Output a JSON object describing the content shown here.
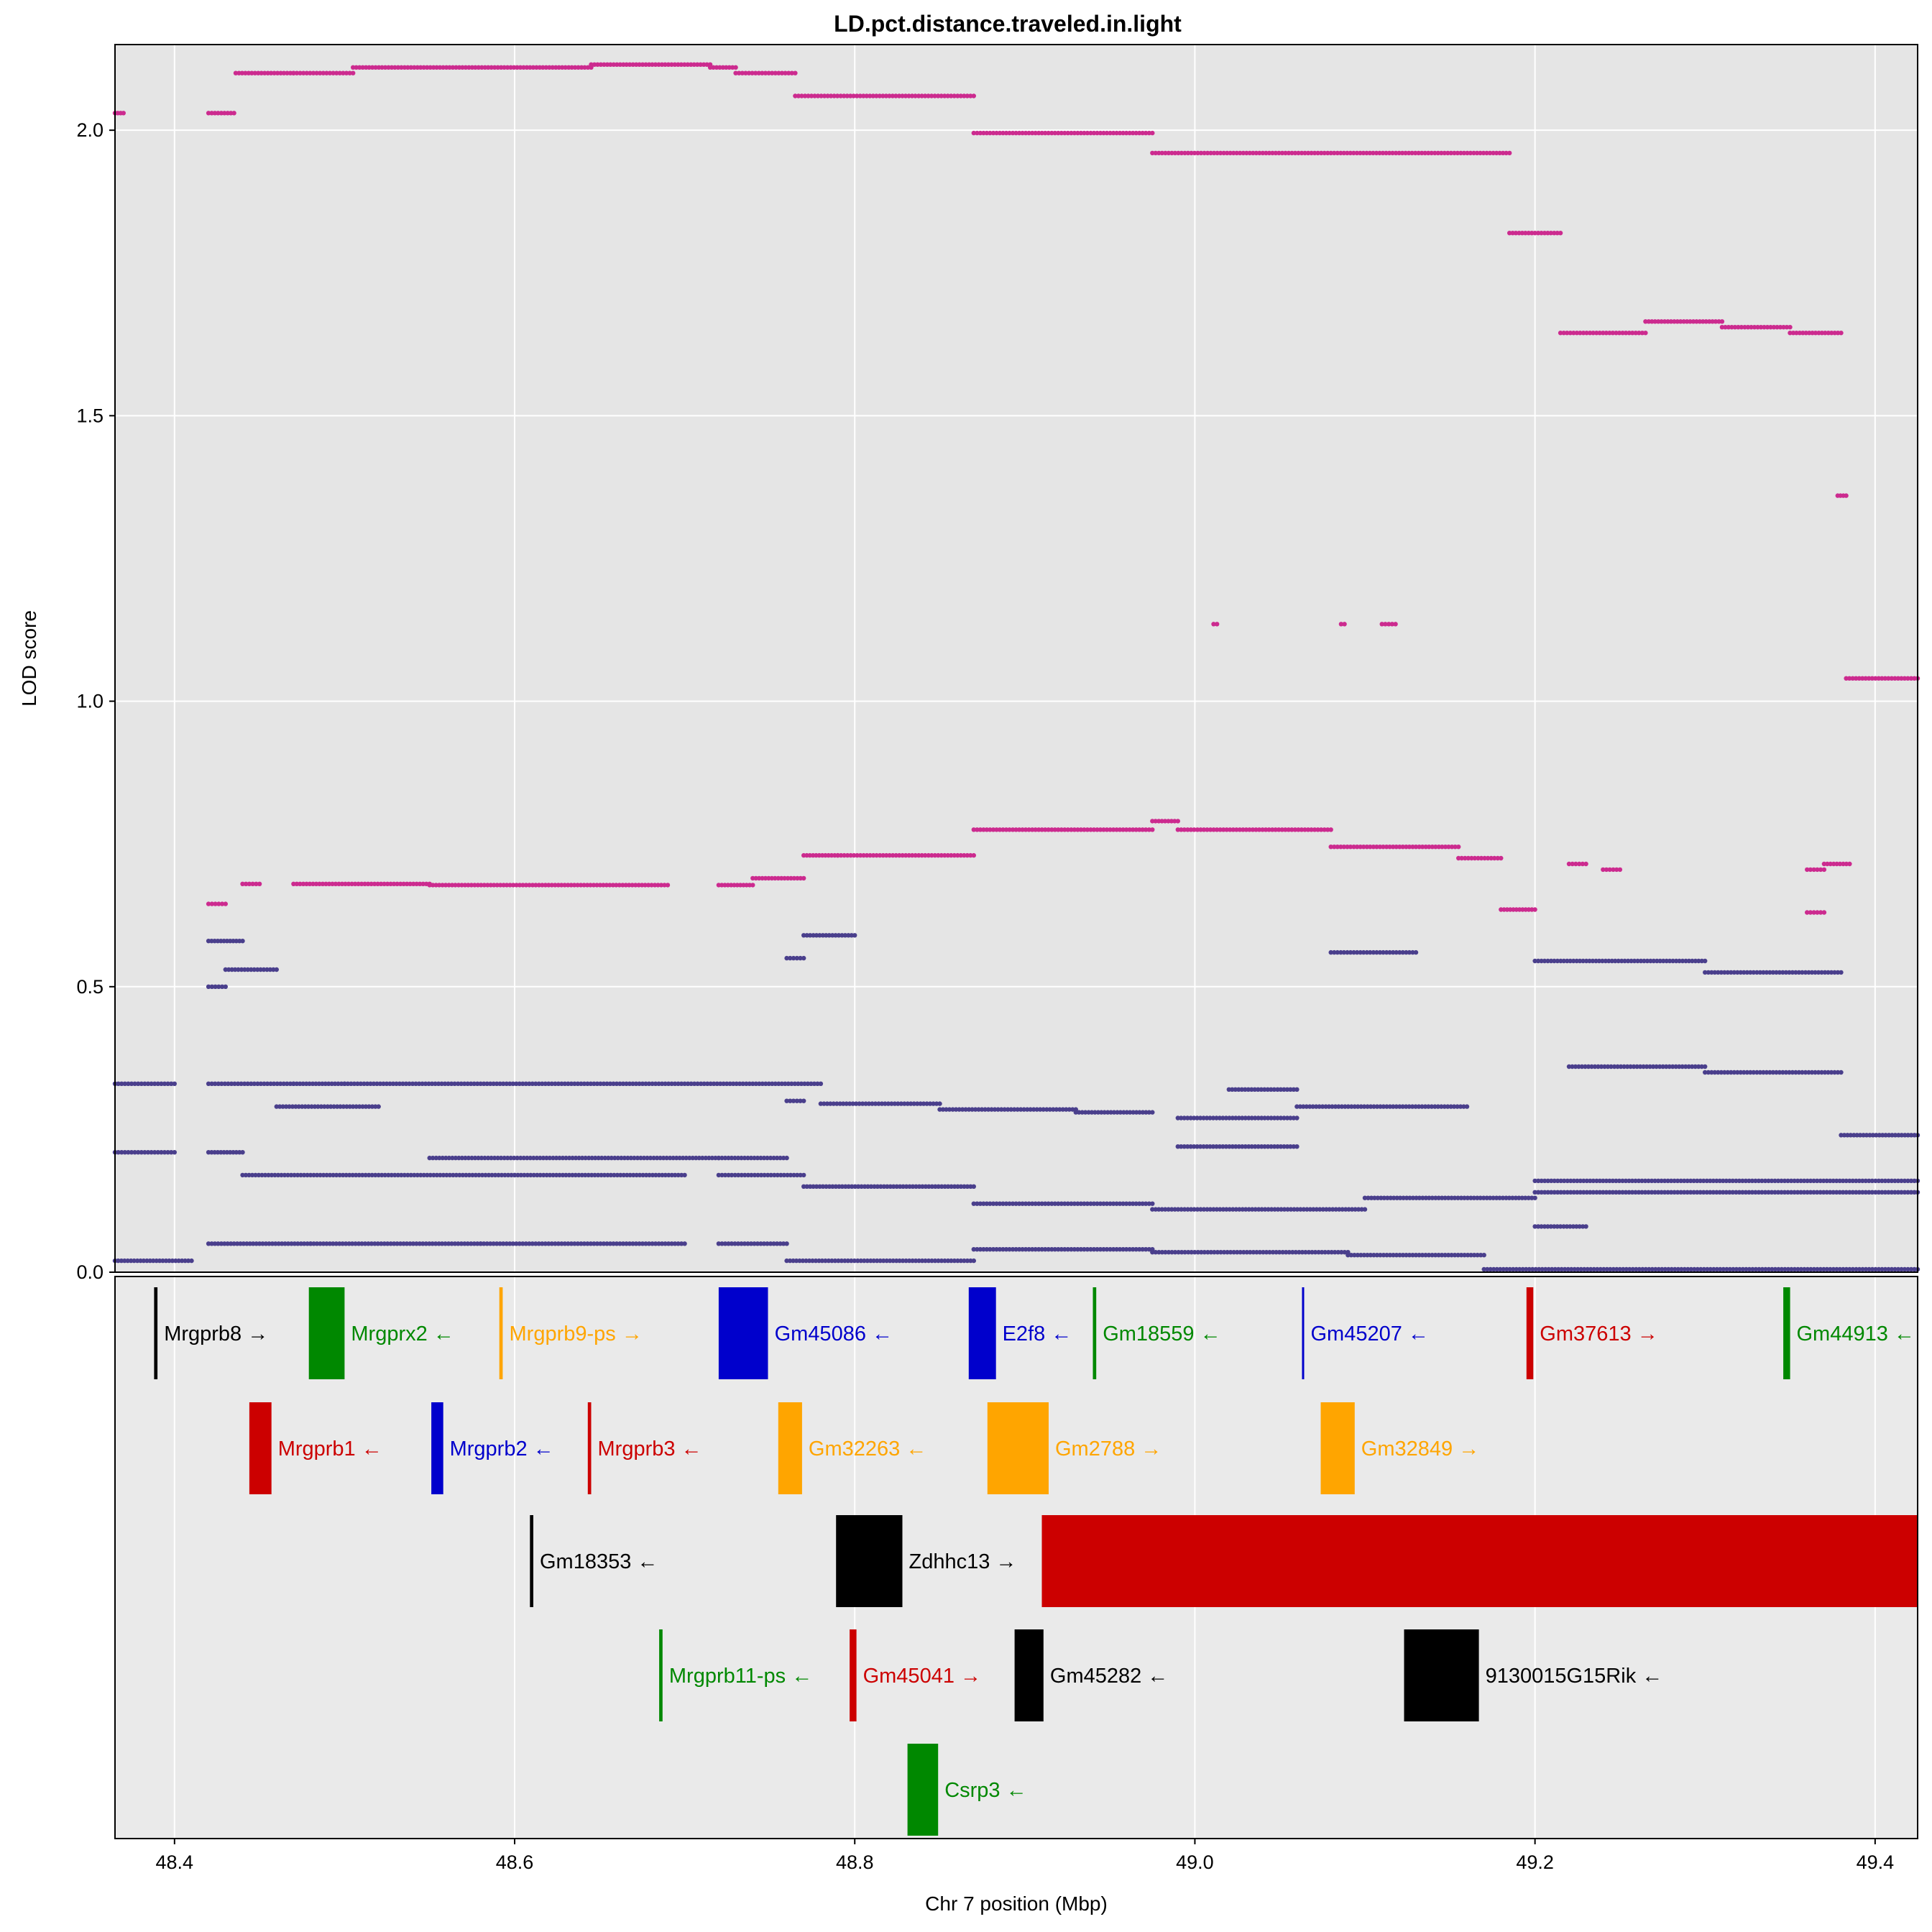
{
  "chart_data": {
    "type": "scatter",
    "title": "LD.pct.distance.traveled.in.light",
    "xlabel": "Chr 7 position (Mbp)",
    "ylabel": "LOD score",
    "xlim": [
      48.365,
      49.425
    ],
    "ylim": [
      0,
      2.15
    ],
    "x_ticks": [
      "48.4",
      "48.6",
      "48.8",
      "49.0",
      "49.2",
      "49.4"
    ],
    "x_tick_values": [
      48.4,
      48.6,
      48.8,
      49.0,
      49.2,
      49.4
    ],
    "y_ticks": [
      "0.0",
      "0.5",
      "1.0",
      "1.5",
      "2.0"
    ],
    "y_tick_values": [
      0,
      0.5,
      1.0,
      1.5,
      2.0
    ],
    "grid": true,
    "colors": {
      "highlight": "#cc2b8f",
      "background_snps": "#4a3f8c",
      "panel_bg": "#e5e5e5"
    },
    "series": [
      {
        "color": "#cc2b8f",
        "segments": [
          [
            48.365,
            48.37,
            2.03
          ],
          [
            48.42,
            48.435,
            2.03
          ],
          [
            48.436,
            48.47,
            2.1
          ],
          [
            48.47,
            48.505,
            2.1
          ],
          [
            48.505,
            48.645,
            2.11
          ],
          [
            48.645,
            48.715,
            2.115
          ],
          [
            48.715,
            48.73,
            2.11
          ],
          [
            48.73,
            48.765,
            2.1
          ],
          [
            48.765,
            48.87,
            2.06
          ],
          [
            48.87,
            48.975,
            1.995
          ],
          [
            48.975,
            49.185,
            1.96
          ],
          [
            49.185,
            49.215,
            1.82
          ],
          [
            49.215,
            49.265,
            1.645
          ],
          [
            49.265,
            49.31,
            1.665
          ],
          [
            49.31,
            49.35,
            1.655
          ],
          [
            49.35,
            49.38,
            1.645
          ],
          [
            49.378,
            49.383,
            1.36
          ],
          [
            49.383,
            49.425,
            1.04
          ],
          [
            49.011,
            49.013,
            1.135
          ],
          [
            49.086,
            49.088,
            1.135
          ],
          [
            49.11,
            49.118,
            1.135
          ],
          [
            48.42,
            48.43,
            0.645
          ],
          [
            48.44,
            48.45,
            0.68
          ],
          [
            48.47,
            48.55,
            0.68
          ],
          [
            48.55,
            48.69,
            0.678
          ],
          [
            48.72,
            48.74,
            0.678
          ],
          [
            48.74,
            48.77,
            0.69
          ],
          [
            48.77,
            48.79,
            0.73
          ],
          [
            48.79,
            48.87,
            0.73
          ],
          [
            48.87,
            48.975,
            0.775
          ],
          [
            48.975,
            48.99,
            0.79
          ],
          [
            48.99,
            49.08,
            0.775
          ],
          [
            49.08,
            49.155,
            0.745
          ],
          [
            49.155,
            49.18,
            0.725
          ],
          [
            49.18,
            49.2,
            0.635
          ],
          [
            49.22,
            49.23,
            0.715
          ],
          [
            49.24,
            49.25,
            0.705
          ],
          [
            49.36,
            49.37,
            0.63
          ],
          [
            49.36,
            49.37,
            0.705
          ],
          [
            49.37,
            49.385,
            0.715
          ]
        ]
      },
      {
        "color": "#4a3f8c",
        "segments": [
          [
            48.365,
            48.4,
            0.33
          ],
          [
            48.365,
            48.4,
            0.21
          ],
          [
            48.365,
            48.41,
            0.02
          ],
          [
            48.42,
            48.44,
            0.58
          ],
          [
            48.42,
            48.43,
            0.5
          ],
          [
            48.43,
            48.46,
            0.53
          ],
          [
            48.42,
            48.47,
            0.33
          ],
          [
            48.47,
            48.5,
            0.33
          ],
          [
            48.5,
            48.78,
            0.33
          ],
          [
            48.42,
            48.44,
            0.21
          ],
          [
            48.44,
            48.6,
            0.17
          ],
          [
            48.46,
            48.52,
            0.29
          ],
          [
            48.55,
            48.72,
            0.2
          ],
          [
            48.6,
            48.7,
            0.17
          ],
          [
            48.72,
            48.76,
            0.2
          ],
          [
            48.72,
            48.77,
            0.17
          ],
          [
            48.77,
            48.87,
            0.15
          ],
          [
            48.87,
            48.975,
            0.12
          ],
          [
            48.975,
            49.1,
            0.11
          ],
          [
            49.1,
            49.2,
            0.13
          ],
          [
            49.2,
            49.425,
            0.16
          ],
          [
            48.42,
            48.48,
            0.05
          ],
          [
            48.48,
            48.58,
            0.05
          ],
          [
            48.58,
            48.7,
            0.05
          ],
          [
            48.72,
            48.76,
            0.05
          ],
          [
            48.76,
            48.87,
            0.02
          ],
          [
            48.87,
            48.975,
            0.04
          ],
          [
            48.975,
            49.09,
            0.035
          ],
          [
            49.09,
            49.17,
            0.03
          ],
          [
            49.17,
            49.425,
            0.005
          ],
          [
            48.76,
            48.77,
            0.3
          ],
          [
            48.78,
            48.85,
            0.295
          ],
          [
            48.85,
            48.93,
            0.285
          ],
          [
            48.93,
            48.975,
            0.28
          ],
          [
            48.99,
            49.06,
            0.27
          ],
          [
            48.99,
            49.06,
            0.22
          ],
          [
            49.02,
            49.06,
            0.32
          ],
          [
            49.06,
            49.16,
            0.29
          ],
          [
            49.08,
            49.13,
            0.56
          ],
          [
            49.2,
            49.3,
            0.545
          ],
          [
            49.3,
            49.38,
            0.525
          ],
          [
            49.22,
            49.3,
            0.36
          ],
          [
            49.3,
            49.38,
            0.35
          ],
          [
            49.2,
            49.425,
            0.14
          ],
          [
            49.38,
            49.425,
            0.24
          ],
          [
            49.2,
            49.23,
            0.08
          ],
          [
            48.76,
            48.77,
            0.55
          ],
          [
            48.77,
            48.8,
            0.59
          ]
        ]
      }
    ],
    "genes": [
      {
        "name": "Mrgprb8",
        "start": 48.388,
        "end": 48.39,
        "strand": "→",
        "row": 1,
        "color": "#000000",
        "label": "Mrgprb8 →"
      },
      {
        "name": "Mrgprx2",
        "start": 48.479,
        "end": 48.5,
        "strand": "←",
        "row": 1,
        "color": "#008800",
        "label": "Mrgprx2 ←"
      },
      {
        "name": "Mrgprb9-ps",
        "start": 48.591,
        "end": 48.593,
        "strand": "→",
        "row": 1,
        "color": "#ffa500",
        "label": "Mrgprb9-ps →"
      },
      {
        "name": "Gm45086",
        "start": 48.72,
        "end": 48.749,
        "strand": "←",
        "row": 1,
        "color": "#0000cc",
        "label": "Gm45086 ←"
      },
      {
        "name": "E2f8",
        "start": 48.867,
        "end": 48.883,
        "strand": "←",
        "row": 1,
        "color": "#0000cc",
        "label": "E2f8 ←"
      },
      {
        "name": "Gm18559",
        "start": 48.94,
        "end": 48.942,
        "strand": "←",
        "row": 1,
        "color": "#008800",
        "label": "Gm18559 ←"
      },
      {
        "name": "Gm45207",
        "start": 49.063,
        "end": 49.064,
        "strand": "←",
        "row": 1,
        "color": "#0000cc",
        "label": "Gm45207 ←"
      },
      {
        "name": "Gm37613",
        "start": 49.195,
        "end": 49.199,
        "strand": "→",
        "row": 1,
        "color": "#cc0000",
        "label": "Gm37613 →"
      },
      {
        "name": "Gm44913",
        "start": 49.346,
        "end": 49.35,
        "strand": "←",
        "row": 1,
        "color": "#008800",
        "label": "Gm44913 ←"
      },
      {
        "name": "Mrgprb1",
        "start": 48.444,
        "end": 48.457,
        "strand": "←",
        "row": 2,
        "color": "#cc0000",
        "label": "Mrgprb1 ←"
      },
      {
        "name": "Mrgprb2",
        "start": 48.551,
        "end": 48.558,
        "strand": "←",
        "row": 2,
        "color": "#0000cc",
        "label": "Mrgprb2 ←"
      },
      {
        "name": "Mrgprb3",
        "start": 48.643,
        "end": 48.645,
        "strand": "←",
        "row": 2,
        "color": "#cc0000",
        "label": "Mrgprb3 ←"
      },
      {
        "name": "Gm32263",
        "start": 48.755,
        "end": 48.769,
        "strand": "←",
        "row": 2,
        "color": "#ffa500",
        "label": "Gm32263 ←"
      },
      {
        "name": "Gm2788",
        "start": 48.878,
        "end": 48.914,
        "strand": "→",
        "row": 2,
        "color": "#ffa500",
        "label": "Gm2788 →"
      },
      {
        "name": "Gm32849",
        "start": 49.074,
        "end": 49.094,
        "strand": "→",
        "row": 2,
        "color": "#ffa500",
        "label": "Gm32849 →"
      },
      {
        "name": "Gm18353",
        "start": 48.609,
        "end": 48.611,
        "strand": "←",
        "row": 3,
        "color": "#000000",
        "label": "Gm18353 ←"
      },
      {
        "name": "Zdhhc13",
        "start": 48.789,
        "end": 48.828,
        "strand": "→",
        "row": 3,
        "color": "#000000",
        "label": "Zdhhc13 →"
      },
      {
        "name": "",
        "start": 48.91,
        "end": 49.425,
        "strand": "",
        "row": 3,
        "color": "#cc0000",
        "label": ""
      },
      {
        "name": "Mrgprb11-ps",
        "start": 48.685,
        "end": 48.687,
        "strand": "←",
        "row": 4,
        "color": "#008800",
        "label": "Mrgprb11-ps ←"
      },
      {
        "name": "Gm45041",
        "start": 48.797,
        "end": 48.801,
        "strand": "→",
        "row": 4,
        "color": "#cc0000",
        "label": "Gm45041 →"
      },
      {
        "name": "Gm45282",
        "start": 48.894,
        "end": 48.911,
        "strand": "←",
        "row": 4,
        "color": "#000000",
        "label": "Gm45282 ←"
      },
      {
        "name": "9130015G15Rik",
        "start": 49.123,
        "end": 49.167,
        "strand": "←",
        "row": 4,
        "color": "#000000",
        "label": "9130015G15Rik ←"
      },
      {
        "name": "Csrp3",
        "start": 48.831,
        "end": 48.849,
        "strand": "←",
        "row": 5,
        "color": "#008800",
        "label": "Csrp3 ←"
      }
    ]
  }
}
